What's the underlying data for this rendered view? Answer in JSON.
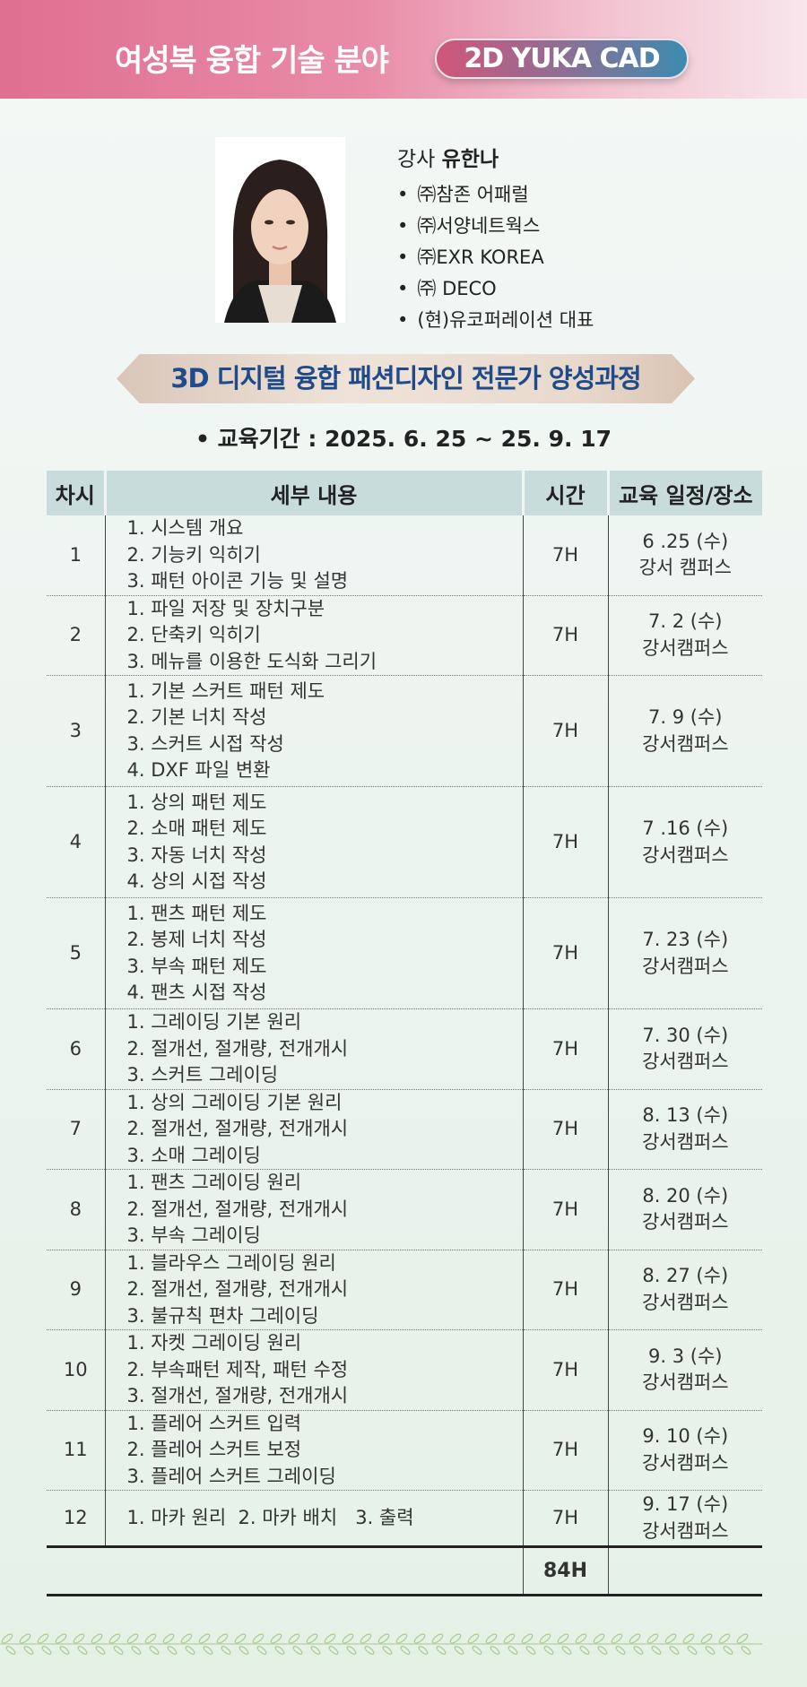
{
  "header": {
    "title": "여성복 융합 기술 분야",
    "badge": "2D YUKA CAD"
  },
  "instructor": {
    "label": "강사",
    "name": "유한나",
    "career": [
      "㈜참존 어패럴",
      "㈜서양네트웍스",
      "㈜EXR KOREA",
      "㈜ DECO",
      "(현)유코퍼레이션 대표"
    ]
  },
  "course": {
    "title": "3D 디지털 융합 패션디자인 전문가 양성과정",
    "period": "• 교육기간 : 2025. 6. 25 ~ 25. 9. 17"
  },
  "table": {
    "headers": [
      "차시",
      "세부 내용",
      "시간",
      "교육 일정/장소"
    ],
    "rows": [
      {
        "no": "1",
        "content": [
          "1. 시스템 개요",
          "2. 기능키 익히기",
          "3. 패턴 아이콘 기능 및 설명"
        ],
        "hours": "7H",
        "date": "6 .25 (수)",
        "place": "강서 캠퍼스"
      },
      {
        "no": "2",
        "content": [
          "1. 파일 저장 및 장치구분",
          "2. 단축키 익히기",
          "3. 메뉴를 이용한 도식화 그리기"
        ],
        "hours": "7H",
        "date": "7. 2 (수)",
        "place": "강서캠퍼스"
      },
      {
        "no": "3",
        "content": [
          "1. 기본 스커트 패턴 제도",
          "2. 기본 너치 작성",
          "3. 스커트 시접 작성",
          "4. DXF 파일 변환"
        ],
        "hours": "7H",
        "date": "7. 9 (수)",
        "place": "강서캠퍼스"
      },
      {
        "no": "4",
        "content": [
          "1. 상의 패턴 제도",
          "2. 소매 패턴 제도",
          "3. 자동 너치 작성",
          "4. 상의 시접 작성"
        ],
        "hours": "7H",
        "date": "7 .16 (수)",
        "place": "강서캠퍼스"
      },
      {
        "no": "5",
        "content": [
          "1. 팬츠 패턴 제도",
          "2. 봉제 너치 작성",
          "3. 부속 패턴 제도",
          "4. 팬츠 시접 작성"
        ],
        "hours": "7H",
        "date": "7. 23 (수)",
        "place": "강서캠퍼스"
      },
      {
        "no": "6",
        "content": [
          "1. 그레이딩 기본 원리",
          "2. 절개선, 절개량, 전개개시",
          "3. 스커트 그레이딩"
        ],
        "hours": "7H",
        "date": "7. 30 (수)",
        "place": "강서캠퍼스"
      },
      {
        "no": "7",
        "content": [
          "1. 상의 그레이딩 기본 원리",
          "2. 절개선, 절개량, 전개개시",
          "3. 소매 그레이딩"
        ],
        "hours": "7H",
        "date": "8. 13 (수)",
        "place": "강서캠퍼스"
      },
      {
        "no": "8",
        "content": [
          "1. 팬츠 그레이딩 원리",
          "2. 절개선, 절개량, 전개개시",
          "3. 부속 그레이딩"
        ],
        "hours": "7H",
        "date": "8. 20 (수)",
        "place": "강서캠퍼스"
      },
      {
        "no": "9",
        "content": [
          "1. 블라우스 그레이딩 원리",
          "2. 절개선, 절개량, 전개개시",
          "3. 불규칙 편차 그레이딩"
        ],
        "hours": "7H",
        "date": "8. 27 (수)",
        "place": "강서캠퍼스"
      },
      {
        "no": "10",
        "content": [
          "1. 자켓 그레이딩 원리",
          "2. 부속패턴 제작, 패턴 수정",
          "3. 절개선, 절개량, 전개개시"
        ],
        "hours": "7H",
        "date": "9. 3 (수)",
        "place": "강서캠퍼스"
      },
      {
        "no": "11",
        "content": [
          "1. 플레어 스커트 입력",
          "2. 플레어 스커트 보정",
          "3. 플레어 스커트 그레이딩"
        ],
        "hours": "7H",
        "date": "9. 10 (수)",
        "place": "강서캠퍼스"
      },
      {
        "no": "12",
        "content": [
          "1. 마카 원리  2. 마카 배치   3. 출력"
        ],
        "hours": "7H",
        "date": "9. 17 (수)",
        "place": "강서캠퍼스"
      }
    ],
    "total_hours": "84H"
  },
  "colors": {
    "header_pink": "#e06f90",
    "banner_text": "#1f4b8a",
    "table_header": "#c8dcdc"
  }
}
